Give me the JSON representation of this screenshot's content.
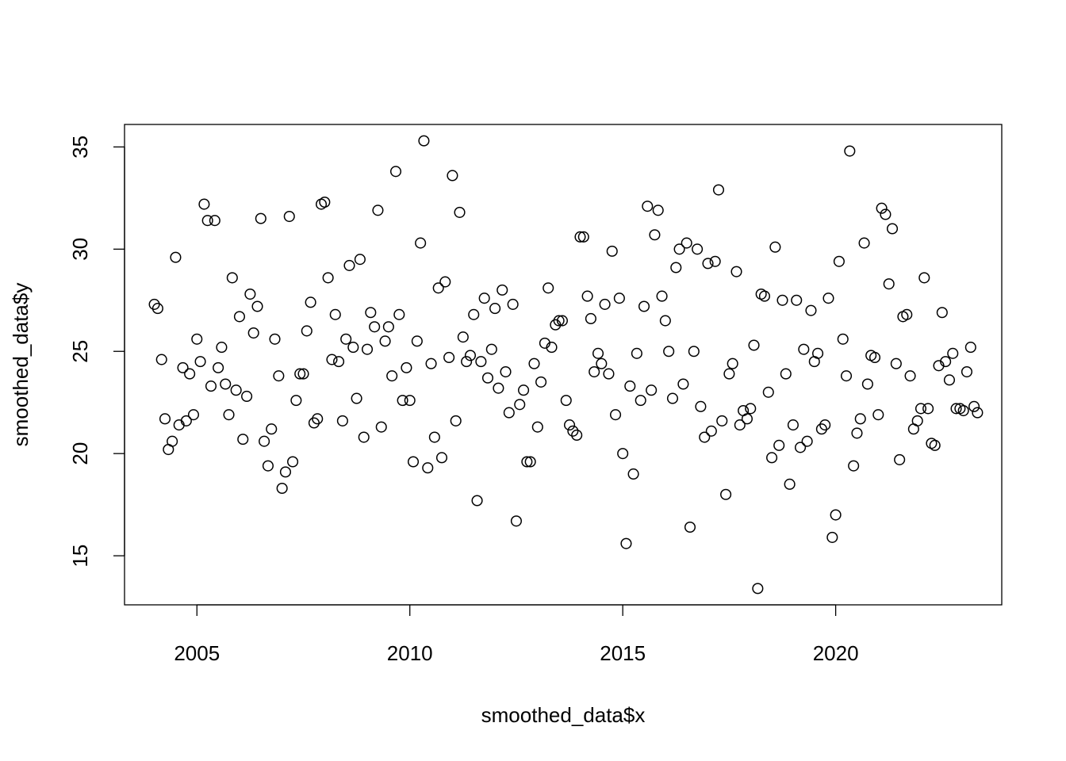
{
  "chart_data": {
    "type": "scatter",
    "title": "",
    "xlabel": "smoothed_data$x",
    "ylabel": "smoothed_data$y",
    "xlim": [
      2003.3,
      2023.9
    ],
    "ylim": [
      12.6,
      36.1
    ],
    "x_ticks": [
      2005,
      2010,
      2015,
      2020
    ],
    "x_tick_labels": [
      "2005",
      "2010",
      "2015",
      "2020"
    ],
    "y_ticks": [
      15,
      20,
      25,
      30,
      35
    ],
    "y_tick_labels": [
      "15",
      "20",
      "25",
      "30",
      "35"
    ],
    "grid": false,
    "legend": "none",
    "marker": "open-circle",
    "series": [
      {
        "x": [
          2004.0,
          2004.08,
          2004.17,
          2004.25,
          2004.33,
          2004.42,
          2004.5,
          2004.58,
          2004.67,
          2004.75,
          2004.83,
          2004.92,
          2005.0,
          2005.08,
          2005.17,
          2005.25,
          2005.33,
          2005.42,
          2005.5,
          2005.58,
          2005.67,
          2005.75,
          2005.83,
          2005.92,
          2006.0,
          2006.08,
          2006.17,
          2006.25,
          2006.33,
          2006.42,
          2006.5,
          2006.58,
          2006.67,
          2006.75,
          2006.83,
          2006.92,
          2007.0,
          2007.08,
          2007.17,
          2007.25,
          2007.33,
          2007.42,
          2007.5,
          2007.58,
          2007.67,
          2007.75,
          2007.83,
          2007.92,
          2008.0,
          2008.08,
          2008.17,
          2008.25,
          2008.33,
          2008.42,
          2008.5,
          2008.58,
          2008.67,
          2008.75,
          2008.83,
          2008.92,
          2009.0,
          2009.08,
          2009.17,
          2009.25,
          2009.33,
          2009.42,
          2009.5,
          2009.58,
          2009.67,
          2009.75,
          2009.83,
          2009.92,
          2010.0,
          2010.08,
          2010.17,
          2010.25,
          2010.33,
          2010.42,
          2010.5,
          2010.58,
          2010.67,
          2010.75,
          2010.83,
          2010.92,
          2011.0,
          2011.08,
          2011.17,
          2011.25,
          2011.33,
          2011.42,
          2011.5,
          2011.58,
          2011.67,
          2011.75,
          2011.83,
          2011.92,
          2012.0,
          2012.08,
          2012.17,
          2012.25,
          2012.33,
          2012.42,
          2012.5,
          2012.58,
          2012.67,
          2012.75,
          2012.83,
          2012.92,
          2013.0,
          2013.08,
          2013.17,
          2013.25,
          2013.33,
          2013.42,
          2013.5,
          2013.58,
          2013.67,
          2013.75,
          2013.83,
          2013.92,
          2014.0,
          2014.08,
          2014.17,
          2014.25,
          2014.33,
          2014.42,
          2014.5,
          2014.58,
          2014.67,
          2014.75,
          2014.83,
          2014.92,
          2015.0,
          2015.08,
          2015.17,
          2015.25,
          2015.33,
          2015.42,
          2015.5,
          2015.58,
          2015.67,
          2015.75,
          2015.83,
          2015.92,
          2016.0,
          2016.08,
          2016.17,
          2016.25,
          2016.33,
          2016.42,
          2016.5,
          2016.58,
          2016.67,
          2016.75,
          2016.83,
          2016.92,
          2017.0,
          2017.08,
          2017.17,
          2017.25,
          2017.33,
          2017.42,
          2017.5,
          2017.58,
          2017.67,
          2017.75,
          2017.83,
          2017.92,
          2018.0,
          2018.08,
          2018.17,
          2018.25,
          2018.33,
          2018.42,
          2018.5,
          2018.58,
          2018.67,
          2018.75,
          2018.83,
          2018.92,
          2019.0,
          2019.08,
          2019.17,
          2019.25,
          2019.33,
          2019.42,
          2019.5,
          2019.58,
          2019.67,
          2019.75,
          2019.83,
          2019.92,
          2020.0,
          2020.08,
          2020.17,
          2020.25,
          2020.33,
          2020.42,
          2020.5,
          2020.58,
          2020.67,
          2020.75,
          2020.83,
          2020.92,
          2021.0,
          2021.08,
          2021.17,
          2021.25,
          2021.33,
          2021.42,
          2021.5,
          2021.58,
          2021.67,
          2021.75,
          2021.83,
          2021.92,
          2022.0,
          2022.08,
          2022.17,
          2022.25,
          2022.33,
          2022.42,
          2022.5,
          2022.58,
          2022.67,
          2022.75,
          2022.83,
          2022.92,
          2023.0,
          2023.08,
          2023.17,
          2023.25,
          2023.33
        ],
        "y": [
          27.3,
          27.1,
          24.6,
          21.7,
          20.2,
          20.6,
          29.6,
          21.4,
          24.2,
          21.6,
          23.9,
          21.9,
          25.6,
          24.5,
          32.2,
          31.4,
          23.3,
          31.4,
          24.2,
          25.2,
          23.4,
          21.9,
          28.6,
          23.1,
          26.7,
          20.7,
          22.8,
          27.8,
          25.9,
          27.2,
          31.5,
          20.6,
          19.4,
          21.2,
          25.6,
          23.8,
          18.3,
          19.1,
          31.6,
          19.6,
          22.6,
          23.9,
          23.9,
          26.0,
          27.4,
          21.5,
          21.7,
          32.2,
          32.3,
          28.6,
          24.6,
          26.8,
          24.5,
          21.6,
          25.6,
          29.2,
          25.2,
          22.7,
          29.5,
          20.8,
          25.1,
          26.9,
          26.2,
          31.9,
          21.3,
          25.5,
          26.2,
          23.8,
          33.8,
          26.8,
          22.6,
          24.2,
          22.6,
          19.6,
          25.5,
          30.3,
          35.3,
          19.3,
          24.4,
          20.8,
          28.1,
          19.8,
          28.4,
          24.7,
          33.6,
          21.6,
          31.8,
          25.7,
          24.5,
          24.8,
          26.8,
          17.7,
          24.5,
          27.6,
          23.7,
          25.1,
          27.1,
          23.2,
          28.0,
          24.0,
          22.0,
          27.3,
          16.7,
          22.4,
          23.1,
          19.6,
          19.6,
          24.4,
          21.3,
          23.5,
          25.4,
          28.1,
          25.2,
          26.3,
          26.5,
          26.5,
          22.6,
          21.4,
          21.1,
          20.9,
          30.6,
          30.6,
          27.7,
          26.6,
          24.0,
          24.9,
          24.4,
          27.3,
          23.9,
          29.9,
          21.9,
          27.6,
          20.0,
          15.6,
          23.3,
          19.0,
          24.9,
          22.6,
          27.2,
          32.1,
          23.1,
          30.7,
          31.9,
          27.7,
          26.5,
          25.0,
          22.7,
          29.1,
          30.0,
          23.4,
          30.3,
          16.4,
          25.0,
          30.0,
          22.3,
          20.8,
          29.3,
          21.1,
          29.4,
          32.9,
          21.6,
          18.0,
          23.9,
          24.4,
          28.9,
          21.4,
          22.1,
          21.7,
          22.2,
          25.3,
          13.4,
          27.8,
          27.7,
          23.0,
          19.8,
          30.1,
          20.4,
          27.5,
          23.9,
          18.5,
          21.4,
          27.5,
          20.3,
          25.1,
          20.6,
          27.0,
          24.5,
          24.9,
          21.2,
          21.4,
          27.6,
          15.9,
          17.0,
          29.4,
          25.6,
          23.8,
          34.8,
          19.4,
          21.0,
          21.7,
          30.3,
          23.4,
          24.8,
          24.7,
          21.9,
          32.0,
          31.7,
          28.3,
          31.0,
          24.4,
          19.7,
          26.7,
          26.8,
          23.8,
          21.2,
          21.6,
          22.2,
          28.6,
          22.2,
          20.5,
          20.4,
          24.3,
          26.9,
          24.5,
          23.6,
          24.9,
          22.2,
          22.2,
          22.1,
          24.0,
          25.2,
          22.3,
          22.0
        ]
      }
    ]
  }
}
